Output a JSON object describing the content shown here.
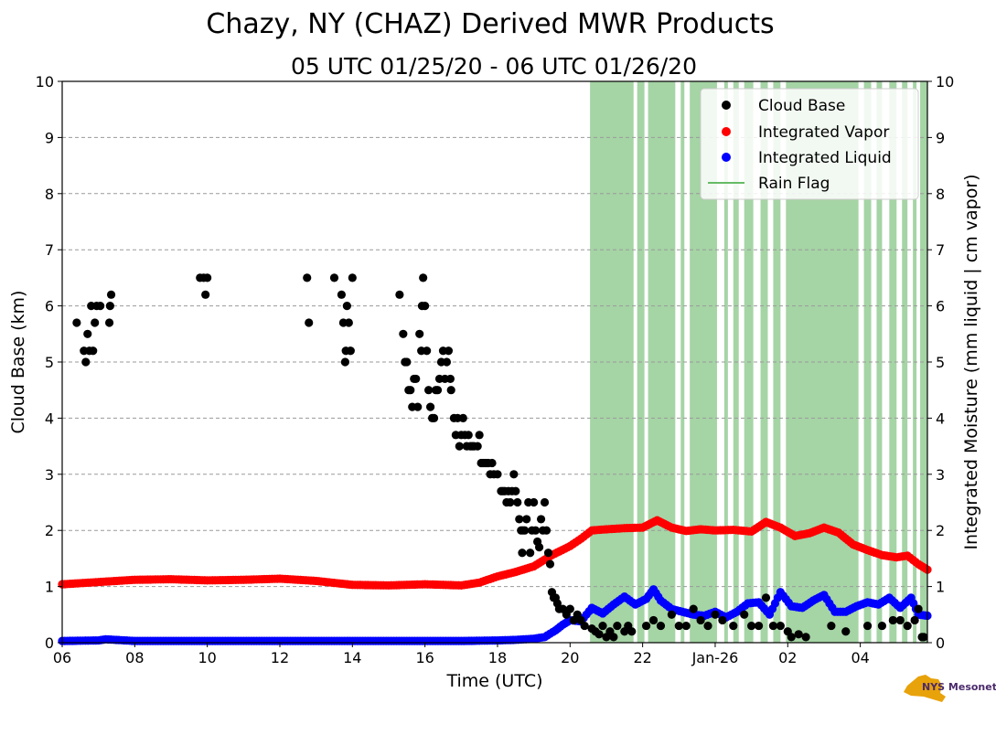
{
  "chart_data": {
    "type": "scatter",
    "title": "Chazy, NY (CHAZ) Derived MWR Products",
    "subtitle": "05 UTC 01/25/20 - 06 UTC 01/26/20",
    "xlabel": "Time (UTC)",
    "ylabel_left": "Cloud Base (km)",
    "ylabel_right": "Integrated Moisture (mm liquid | cm vapor)",
    "x_unit": "hours since 06 UTC 01/25/20",
    "xlim": [
      0,
      23.85
    ],
    "ylim": [
      0,
      10
    ],
    "x_ticks": [
      {
        "x": 0,
        "label": "06"
      },
      {
        "x": 2,
        "label": "08"
      },
      {
        "x": 4,
        "label": "10"
      },
      {
        "x": 6,
        "label": "12"
      },
      {
        "x": 8,
        "label": "14"
      },
      {
        "x": 10,
        "label": "16"
      },
      {
        "x": 12,
        "label": "18"
      },
      {
        "x": 14,
        "label": "20"
      },
      {
        "x": 16,
        "label": "22"
      },
      {
        "x": 18,
        "label": "Jan-26"
      },
      {
        "x": 20,
        "label": "02"
      },
      {
        "x": 22,
        "label": "04"
      }
    ],
    "y_ticks": [
      "0",
      "1",
      "2",
      "3",
      "4",
      "5",
      "6",
      "7",
      "8",
      "9",
      "10"
    ],
    "grid": "horizontal dashed",
    "legend_position": "top-right",
    "legend": [
      {
        "label": "Cloud Base",
        "marker": "dot",
        "color": "#000000"
      },
      {
        "label": "Integrated Vapor",
        "marker": "dot",
        "color": "#ff0000"
      },
      {
        "label": "Integrated Liquid",
        "marker": "dot",
        "color": "#0000ff"
      },
      {
        "label": "Rain Flag",
        "marker": "line",
        "color": "#66bb66"
      }
    ],
    "series": [
      {
        "name": "Cloud Base",
        "color": "#000000",
        "points": [
          [
            0.4,
            5.7
          ],
          [
            0.6,
            5.2
          ],
          [
            0.65,
            5.0
          ],
          [
            0.7,
            5.5
          ],
          [
            0.75,
            5.2
          ],
          [
            0.8,
            6.0
          ],
          [
            0.85,
            5.2
          ],
          [
            0.9,
            5.7
          ],
          [
            0.95,
            6.0
          ],
          [
            1.05,
            6.0
          ],
          [
            1.3,
            5.7
          ],
          [
            1.32,
            6.0
          ],
          [
            1.35,
            6.2
          ],
          [
            3.8,
            6.5
          ],
          [
            3.9,
            6.5
          ],
          [
            3.95,
            6.2
          ],
          [
            4.0,
            6.5
          ],
          [
            6.75,
            6.5
          ],
          [
            6.8,
            5.7
          ],
          [
            7.5,
            6.5
          ],
          [
            7.7,
            6.2
          ],
          [
            7.75,
            5.7
          ],
          [
            7.8,
            5.0
          ],
          [
            7.82,
            5.2
          ],
          [
            7.85,
            6.0
          ],
          [
            7.9,
            5.7
          ],
          [
            7.95,
            5.2
          ],
          [
            8.0,
            6.5
          ],
          [
            9.3,
            6.2
          ],
          [
            9.4,
            5.5
          ],
          [
            9.45,
            5.0
          ],
          [
            9.5,
            5.0
          ],
          [
            9.55,
            4.5
          ],
          [
            9.6,
            4.5
          ],
          [
            9.65,
            4.2
          ],
          [
            9.7,
            4.7
          ],
          [
            9.75,
            4.7
          ],
          [
            9.8,
            4.2
          ],
          [
            9.85,
            5.5
          ],
          [
            9.9,
            5.2
          ],
          [
            9.92,
            6.0
          ],
          [
            9.95,
            6.5
          ],
          [
            10.0,
            6.0
          ],
          [
            10.05,
            5.2
          ],
          [
            10.1,
            4.5
          ],
          [
            10.15,
            4.2
          ],
          [
            10.2,
            4.0
          ],
          [
            10.25,
            4.0
          ],
          [
            10.3,
            4.5
          ],
          [
            10.35,
            4.5
          ],
          [
            10.4,
            4.7
          ],
          [
            10.45,
            5.0
          ],
          [
            10.5,
            5.2
          ],
          [
            10.55,
            4.7
          ],
          [
            10.6,
            5.0
          ],
          [
            10.65,
            5.2
          ],
          [
            10.7,
            4.7
          ],
          [
            10.72,
            4.5
          ],
          [
            10.8,
            4.0
          ],
          [
            10.85,
            3.7
          ],
          [
            10.9,
            4.0
          ],
          [
            10.95,
            3.5
          ],
          [
            11.0,
            3.7
          ],
          [
            11.05,
            4.0
          ],
          [
            11.1,
            3.7
          ],
          [
            11.15,
            3.5
          ],
          [
            11.2,
            3.7
          ],
          [
            11.25,
            3.5
          ],
          [
            11.3,
            3.5
          ],
          [
            11.35,
            3.5
          ],
          [
            11.45,
            3.5
          ],
          [
            11.5,
            3.7
          ],
          [
            11.55,
            3.2
          ],
          [
            11.6,
            3.2
          ],
          [
            11.65,
            3.2
          ],
          [
            11.7,
            3.2
          ],
          [
            11.75,
            3.2
          ],
          [
            11.8,
            3.0
          ],
          [
            11.85,
            3.2
          ],
          [
            11.9,
            3.0
          ],
          [
            12.0,
            3.0
          ],
          [
            12.1,
            2.7
          ],
          [
            12.15,
            2.7
          ],
          [
            12.2,
            2.7
          ],
          [
            12.25,
            2.5
          ],
          [
            12.3,
            2.7
          ],
          [
            12.35,
            2.5
          ],
          [
            12.4,
            2.7
          ],
          [
            12.45,
            3.0
          ],
          [
            12.5,
            2.7
          ],
          [
            12.55,
            2.5
          ],
          [
            12.6,
            2.2
          ],
          [
            12.65,
            2.0
          ],
          [
            12.68,
            1.6
          ],
          [
            12.7,
            2.0
          ],
          [
            12.75,
            2.0
          ],
          [
            12.8,
            2.2
          ],
          [
            12.85,
            2.5
          ],
          [
            12.9,
            1.6
          ],
          [
            12.95,
            2.0
          ],
          [
            13.0,
            2.5
          ],
          [
            13.05,
            2.0
          ],
          [
            13.1,
            1.8
          ],
          [
            13.15,
            1.7
          ],
          [
            13.2,
            2.2
          ],
          [
            13.25,
            2.0
          ],
          [
            13.3,
            2.5
          ],
          [
            13.35,
            2.0
          ],
          [
            13.4,
            1.6
          ],
          [
            13.45,
            1.4
          ],
          [
            13.5,
            0.9
          ],
          [
            13.55,
            0.8
          ],
          [
            13.6,
            0.8
          ],
          [
            13.65,
            0.7
          ],
          [
            13.7,
            0.6
          ],
          [
            13.8,
            0.6
          ],
          [
            13.9,
            0.5
          ],
          [
            14.0,
            0.6
          ],
          [
            14.1,
            0.4
          ],
          [
            14.2,
            0.5
          ],
          [
            14.3,
            0.4
          ],
          [
            14.4,
            0.3
          ],
          [
            14.6,
            0.25
          ],
          [
            14.7,
            0.2
          ],
          [
            14.8,
            0.15
          ],
          [
            14.9,
            0.3
          ],
          [
            15.0,
            0.1
          ],
          [
            15.1,
            0.2
          ],
          [
            15.2,
            0.1
          ],
          [
            15.3,
            0.3
          ],
          [
            15.5,
            0.2
          ],
          [
            15.6,
            0.3
          ],
          [
            15.7,
            0.2
          ],
          [
            16.1,
            0.3
          ],
          [
            16.3,
            0.4
          ],
          [
            16.5,
            0.3
          ],
          [
            16.8,
            0.5
          ],
          [
            17.0,
            0.3
          ],
          [
            17.2,
            0.3
          ],
          [
            17.4,
            0.6
          ],
          [
            17.6,
            0.4
          ],
          [
            17.8,
            0.3
          ],
          [
            18.0,
            0.5
          ],
          [
            18.2,
            0.4
          ],
          [
            18.5,
            0.3
          ],
          [
            18.8,
            0.5
          ],
          [
            19.0,
            0.3
          ],
          [
            19.2,
            0.3
          ],
          [
            19.4,
            0.8
          ],
          [
            19.6,
            0.3
          ],
          [
            19.8,
            0.3
          ],
          [
            20.0,
            0.2
          ],
          [
            20.1,
            0.1
          ],
          [
            20.3,
            0.15
          ],
          [
            20.5,
            0.1
          ],
          [
            21.2,
            0.3
          ],
          [
            21.6,
            0.2
          ],
          [
            22.2,
            0.3
          ],
          [
            22.6,
            0.3
          ],
          [
            22.9,
            0.4
          ],
          [
            23.1,
            0.4
          ],
          [
            23.3,
            0.3
          ],
          [
            23.5,
            0.4
          ],
          [
            23.6,
            0.6
          ],
          [
            23.7,
            0.1
          ],
          [
            23.75,
            0.1
          ]
        ]
      },
      {
        "name": "Integrated Vapor",
        "color": "#ff0000",
        "points": [
          [
            0,
            1.04
          ],
          [
            1,
            1.08
          ],
          [
            2,
            1.12
          ],
          [
            3,
            1.13
          ],
          [
            4,
            1.11
          ],
          [
            5,
            1.12
          ],
          [
            6,
            1.14
          ],
          [
            7,
            1.1
          ],
          [
            8,
            1.03
          ],
          [
            9,
            1.02
          ],
          [
            10,
            1.04
          ],
          [
            11,
            1.02
          ],
          [
            11.5,
            1.07
          ],
          [
            12,
            1.18
          ],
          [
            12.5,
            1.26
          ],
          [
            13,
            1.36
          ],
          [
            13.5,
            1.56
          ],
          [
            14,
            1.72
          ],
          [
            14.3,
            1.85
          ],
          [
            14.6,
            2.0
          ],
          [
            15,
            2.02
          ],
          [
            15.5,
            2.04
          ],
          [
            16,
            2.05
          ],
          [
            16.4,
            2.18
          ],
          [
            16.8,
            2.05
          ],
          [
            17.2,
            1.99
          ],
          [
            17.6,
            2.02
          ],
          [
            18,
            2.0
          ],
          [
            18.5,
            2.01
          ],
          [
            19,
            1.98
          ],
          [
            19.4,
            2.15
          ],
          [
            19.8,
            2.05
          ],
          [
            20.2,
            1.9
          ],
          [
            20.6,
            1.95
          ],
          [
            21.0,
            2.05
          ],
          [
            21.4,
            1.96
          ],
          [
            21.8,
            1.75
          ],
          [
            22.2,
            1.65
          ],
          [
            22.6,
            1.56
          ],
          [
            23.0,
            1.52
          ],
          [
            23.3,
            1.55
          ],
          [
            23.6,
            1.4
          ],
          [
            23.85,
            1.3
          ]
        ]
      },
      {
        "name": "Integrated Liquid",
        "color": "#0000ff",
        "points": [
          [
            0,
            0.03
          ],
          [
            1,
            0.04
          ],
          [
            1.2,
            0.06
          ],
          [
            2,
            0.03
          ],
          [
            4,
            0.03
          ],
          [
            6,
            0.03
          ],
          [
            8,
            0.03
          ],
          [
            10,
            0.03
          ],
          [
            11,
            0.03
          ],
          [
            12,
            0.04
          ],
          [
            12.5,
            0.05
          ],
          [
            13,
            0.07
          ],
          [
            13.3,
            0.1
          ],
          [
            13.6,
            0.22
          ],
          [
            13.8,
            0.32
          ],
          [
            14,
            0.4
          ],
          [
            14.3,
            0.38
          ],
          [
            14.6,
            0.62
          ],
          [
            14.9,
            0.52
          ],
          [
            15.2,
            0.68
          ],
          [
            15.5,
            0.82
          ],
          [
            15.8,
            0.68
          ],
          [
            16.1,
            0.78
          ],
          [
            16.3,
            0.95
          ],
          [
            16.5,
            0.75
          ],
          [
            16.8,
            0.6
          ],
          [
            17.1,
            0.55
          ],
          [
            17.4,
            0.5
          ],
          [
            17.7,
            0.48
          ],
          [
            18.0,
            0.55
          ],
          [
            18.3,
            0.45
          ],
          [
            18.6,
            0.55
          ],
          [
            18.9,
            0.7
          ],
          [
            19.2,
            0.72
          ],
          [
            19.5,
            0.5
          ],
          [
            19.8,
            0.9
          ],
          [
            20.1,
            0.65
          ],
          [
            20.4,
            0.62
          ],
          [
            20.7,
            0.75
          ],
          [
            21.0,
            0.85
          ],
          [
            21.3,
            0.55
          ],
          [
            21.6,
            0.55
          ],
          [
            21.9,
            0.65
          ],
          [
            22.2,
            0.72
          ],
          [
            22.5,
            0.68
          ],
          [
            22.8,
            0.8
          ],
          [
            23.1,
            0.62
          ],
          [
            23.4,
            0.8
          ],
          [
            23.6,
            0.5
          ],
          [
            23.85,
            0.48
          ]
        ]
      },
      {
        "name": "Rain Flag",
        "color": "#66bb66",
        "intervals": [
          [
            14.55,
            15.75
          ],
          [
            15.85,
            16.05
          ],
          [
            16.15,
            16.9
          ],
          [
            17.05,
            17.15
          ],
          [
            17.3,
            18.05
          ],
          [
            18.25,
            18.35
          ],
          [
            18.5,
            18.65
          ],
          [
            18.8,
            19.05
          ],
          [
            19.25,
            19.45
          ],
          [
            19.6,
            19.8
          ],
          [
            19.95,
            21.95
          ],
          [
            22.1,
            22.3
          ],
          [
            22.45,
            22.6
          ],
          [
            22.8,
            23.0
          ],
          [
            23.15,
            23.3
          ],
          [
            23.45,
            23.55
          ],
          [
            23.65,
            23.85
          ]
        ]
      }
    ]
  }
}
